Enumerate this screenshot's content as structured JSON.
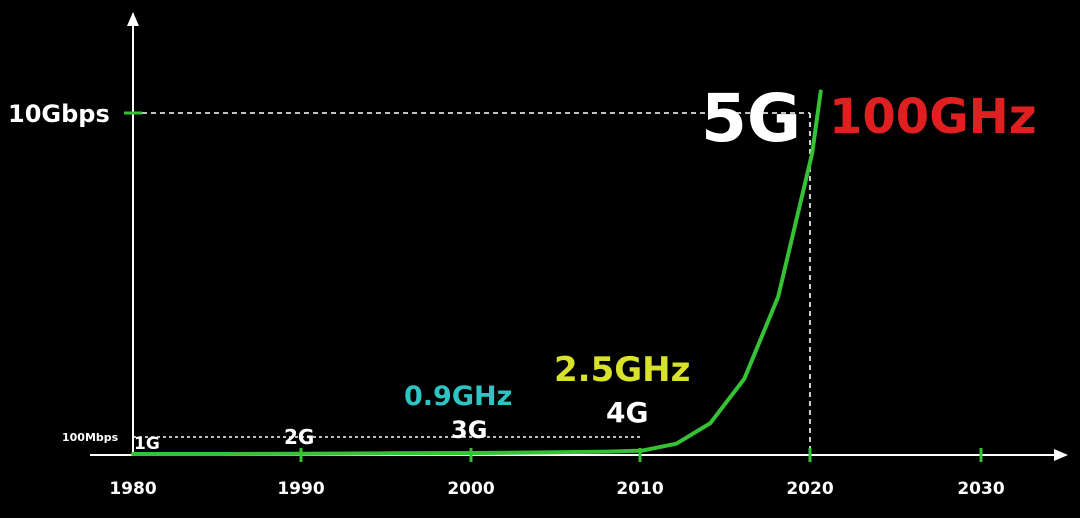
{
  "chart_data": {
    "type": "line",
    "title": "",
    "xlabel": "",
    "ylabel": "",
    "x_ticks": [
      "1980",
      "1990",
      "2000",
      "2010",
      "2020",
      "2030"
    ],
    "y_ticks": [
      "100Mbps",
      "10Gbps"
    ],
    "xlim": [
      1980,
      2032
    ],
    "series": [
      {
        "x": [
          1980,
          1985,
          1990,
          1995,
          2000,
          2005,
          2008,
          2010,
          2012,
          2014,
          2016,
          2018,
          2020,
          2020.5
        ],
        "y": [
          0,
          0,
          0.01,
          0.02,
          0.03,
          0.05,
          0.07,
          0.1,
          0.3,
          0.9,
          2.2,
          4.6,
          8.8,
          10.6
        ]
      }
    ],
    "generations": [
      {
        "label": "1G",
        "year": 1980
      },
      {
        "label": "2G",
        "year": 1990
      },
      {
        "label": "3G",
        "year": 2000
      },
      {
        "label": "4G",
        "year": 2010
      },
      {
        "label": "5G",
        "year": 2020
      }
    ],
    "frequencies": [
      {
        "label": "0.9GHz",
        "year": 2000,
        "color": "#2ec4c4"
      },
      {
        "label": "2.5GHz",
        "year": 2010,
        "color": "#d8e22a"
      },
      {
        "label": "100GHz",
        "year": 2020,
        "color": "#e02020"
      }
    ],
    "reference_lines": [
      {
        "label": "10Gbps",
        "year": 2020
      },
      {
        "label": "100Mbps",
        "year": 2010
      }
    ],
    "colors": {
      "background": "#000000",
      "curve": "#35c235",
      "axis": "#ffffff",
      "tick": "#35c235"
    }
  }
}
